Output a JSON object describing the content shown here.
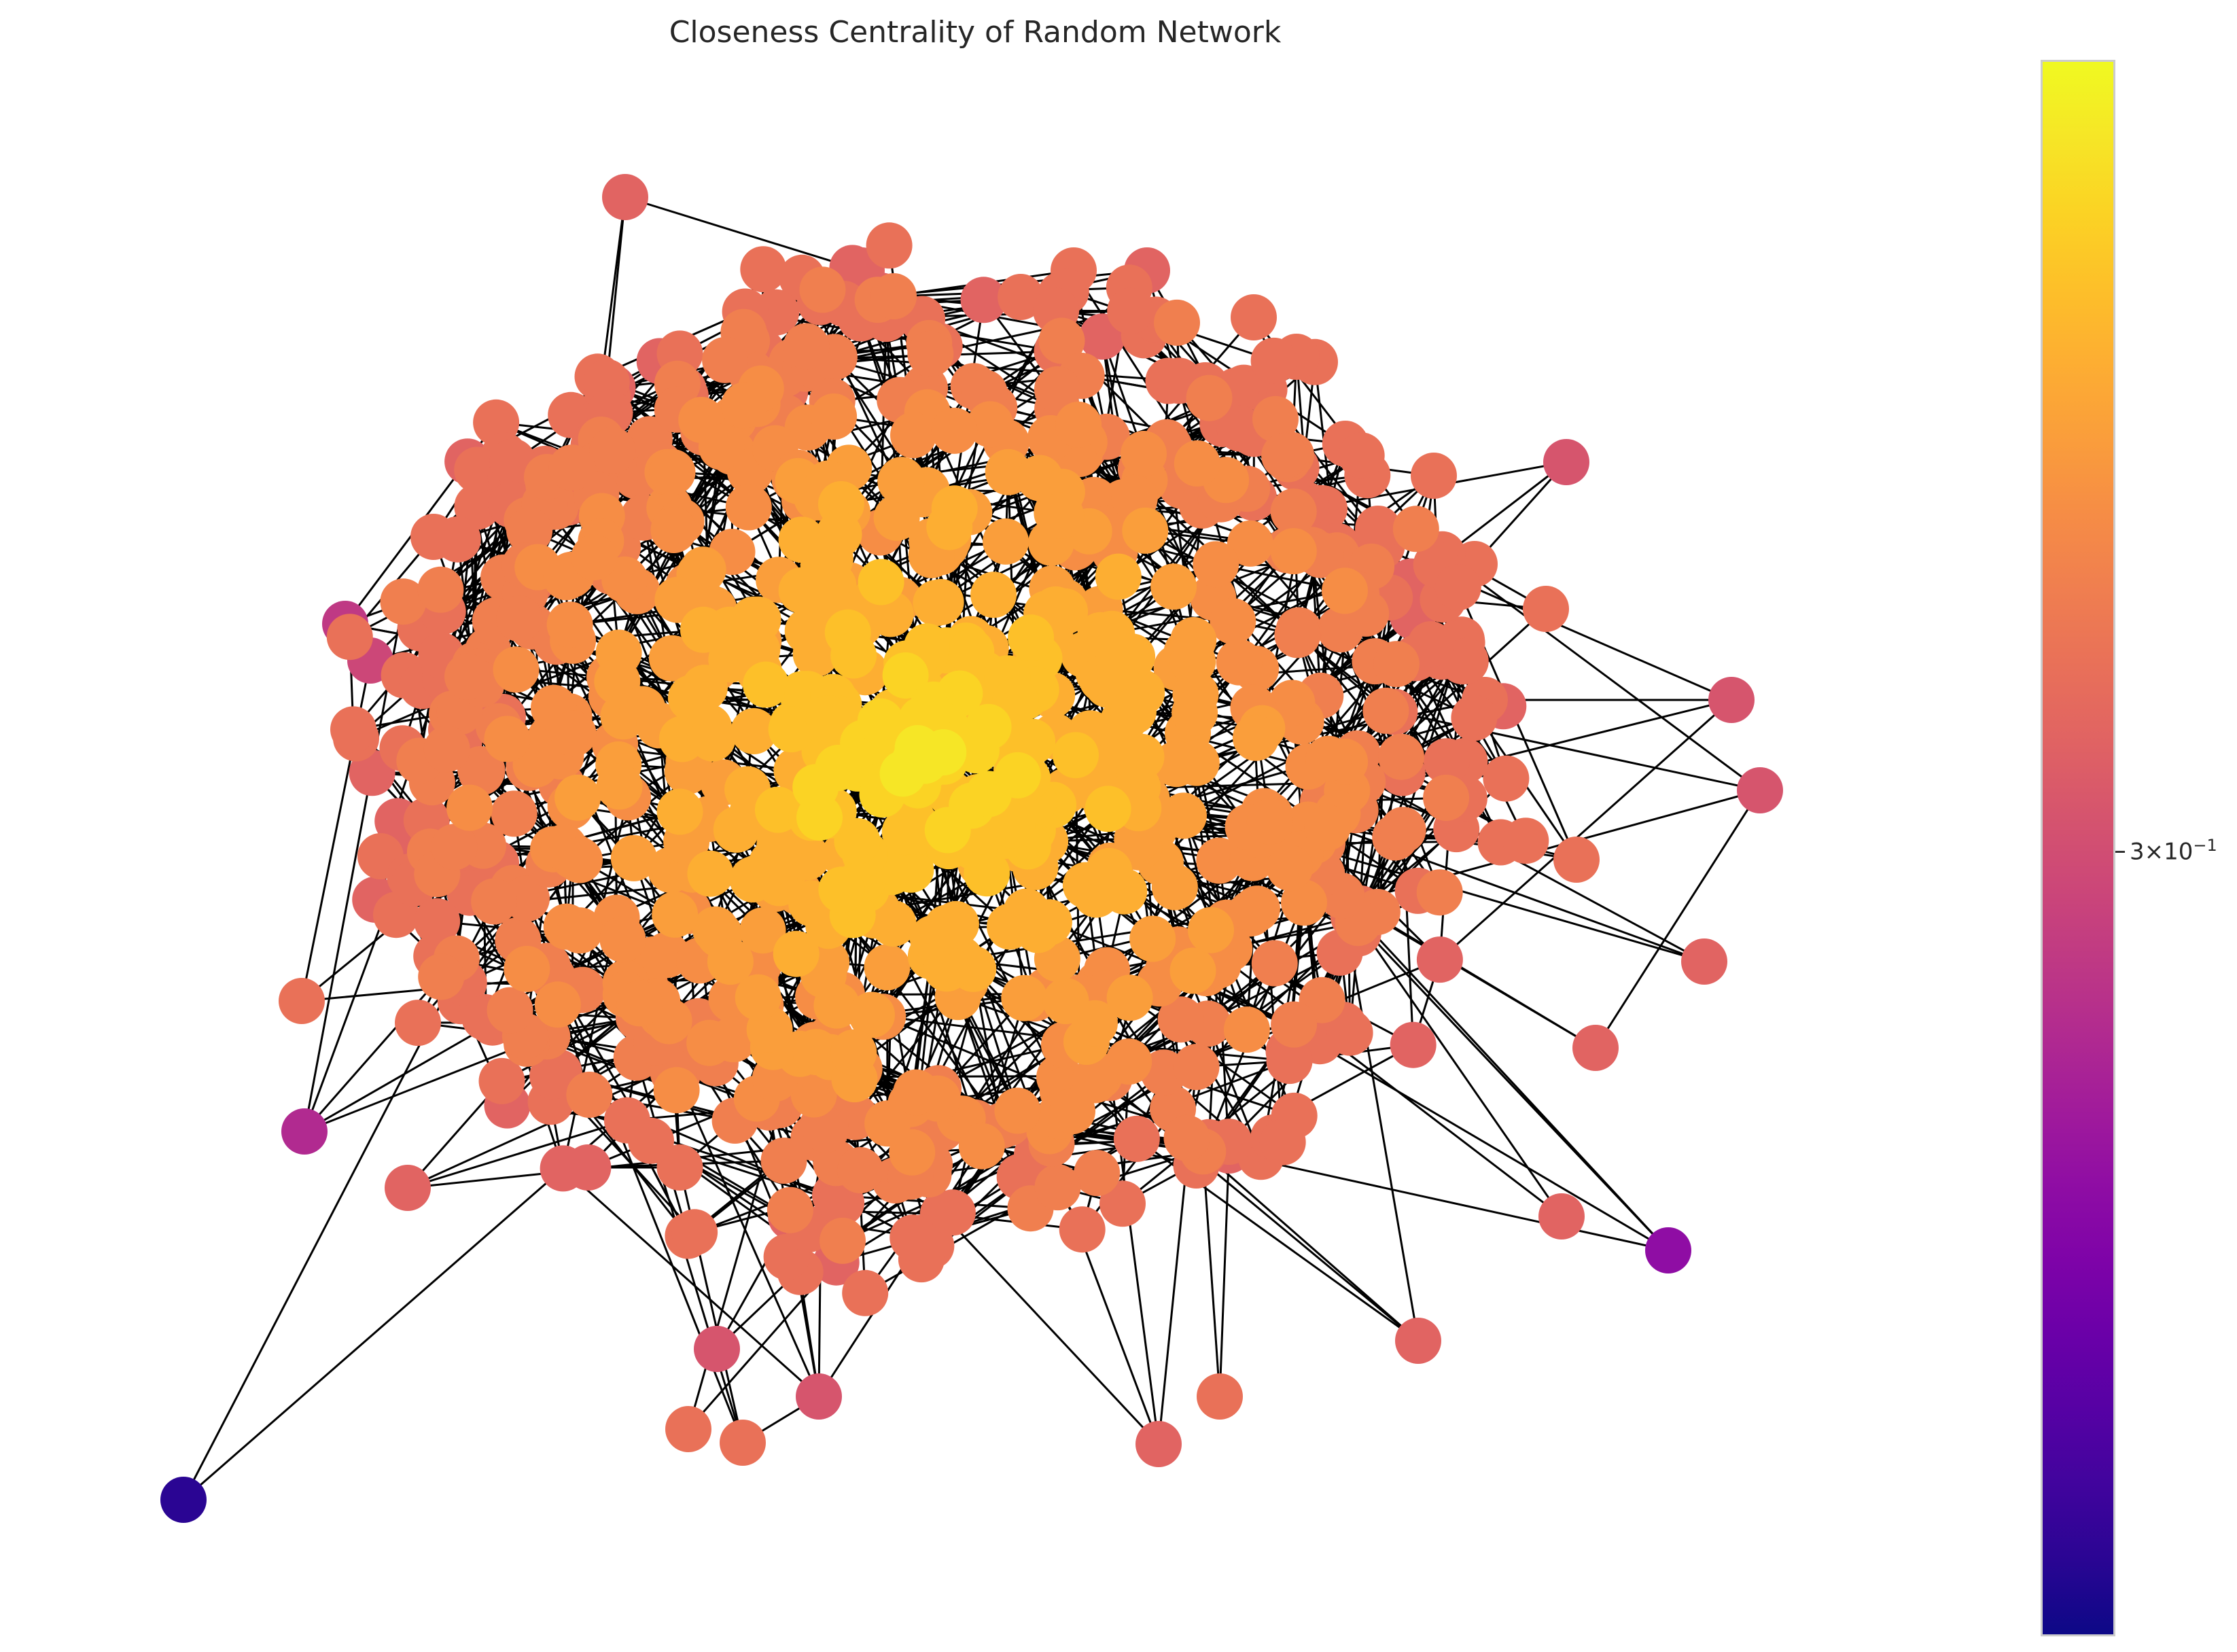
{
  "chart_data": {
    "type": "network",
    "title": "Closeness Centrality of Random Network",
    "colormap": "plasma",
    "color_scale": "log",
    "colorbar": {
      "tick_base": "3×10",
      "tick_exponent": "−1",
      "tick_value": 0.3
    },
    "node_count_approx": 1000,
    "edge_color": "#000000",
    "grid": false,
    "axes_visible": false
  }
}
